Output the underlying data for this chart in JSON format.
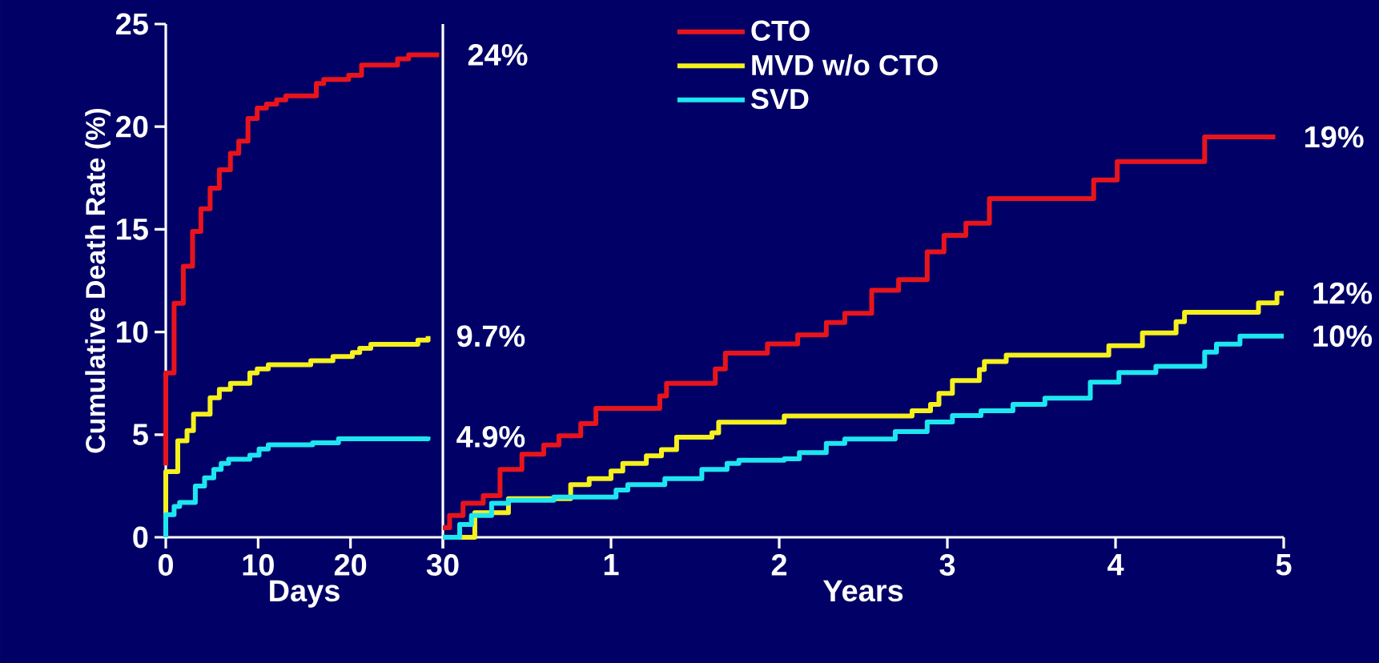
{
  "chart_data": [
    {
      "type": "step",
      "ylabel": "Cumulative Death Rate (%)",
      "xlabel": "Days",
      "xlim": [
        0,
        30
      ],
      "xticks": [
        0,
        10,
        20,
        30
      ],
      "ylim": [
        0,
        25
      ],
      "yticks": [
        0,
        5,
        10,
        15,
        20,
        25
      ],
      "grid": false,
      "series": [
        {
          "color": "#e8141c",
          "x": [
            0,
            0,
            0.9,
            1.9,
            2.9,
            3.8,
            4.8,
            5.8,
            7.0,
            7.9,
            8.9,
            9.9,
            10.9,
            12.0,
            13.0,
            16.3,
            17.1,
            19.8,
            21.2,
            25.1,
            26.3,
            29.6
          ],
          "values": [
            3.5,
            8.0,
            11.4,
            13.2,
            14.9,
            16.0,
            17.0,
            17.9,
            18.7,
            19.3,
            20.4,
            20.9,
            21.1,
            21.3,
            21.5,
            22.1,
            22.3,
            22.5,
            23.0,
            23.3,
            23.5,
            23.5
          ]
        },
        {
          "color": "#f5f01e",
          "x": [
            0,
            0,
            1.3,
            2.3,
            3.0,
            4.8,
            5.8,
            7.0,
            9.1,
            9.9,
            11.1,
            15.7,
            18.1,
            20.2,
            21.0,
            22.2,
            27.3,
            28.4
          ],
          "values": [
            0,
            3.2,
            4.7,
            5.2,
            6.0,
            6.8,
            7.2,
            7.5,
            8.0,
            8.2,
            8.4,
            8.6,
            8.8,
            9.0,
            9.2,
            9.4,
            9.6,
            9.8
          ]
        },
        {
          "color": "#1ee6f0",
          "x": [
            0,
            0,
            0.9,
            1.5,
            3.2,
            4.2,
            5.2,
            6.0,
            6.8,
            9.1,
            10.1,
            11.1,
            15.9,
            18.7,
            28.4
          ],
          "values": [
            0,
            1.1,
            1.5,
            1.7,
            2.5,
            2.9,
            3.3,
            3.6,
            3.8,
            4.0,
            4.3,
            4.5,
            4.6,
            4.8,
            4.9
          ]
        }
      ],
      "annotations": [
        {
          "text": "24%",
          "x": 29.6,
          "y": 23.5
        },
        {
          "text": "9.7%",
          "x": 28.4,
          "y": 9.8
        },
        {
          "text": "4.9%",
          "x": 28.4,
          "y": 4.9
        }
      ]
    },
    {
      "type": "step",
      "xlabel": "Years",
      "xlim": [
        0,
        5
      ],
      "xticks": [
        {
          "value": 0,
          "label": null
        },
        1,
        2,
        3,
        4,
        5
      ],
      "ylim": [
        0,
        25
      ],
      "tick_labels": "x",
      "grid": false,
      "legend": "top left",
      "series": [
        {
          "name": "CTO",
          "color": "#e8141c",
          "x": [
            0,
            0.04,
            0.12,
            0.24,
            0.34,
            0.47,
            0.6,
            0.69,
            0.82,
            0.91,
            1.29,
            1.33,
            1.62,
            1.68,
            1.93,
            2.11,
            2.28,
            2.39,
            2.55,
            2.71,
            2.88,
            2.98,
            3.11,
            3.25,
            3.87,
            4.01,
            4.53,
            4.95
          ],
          "values": [
            0.47,
            1.06,
            1.66,
            2.03,
            3.3,
            4.05,
            4.49,
            4.94,
            5.54,
            6.28,
            6.88,
            7.5,
            8.2,
            8.97,
            9.42,
            9.86,
            10.46,
            10.91,
            12.03,
            12.55,
            13.9,
            14.7,
            15.3,
            16.5,
            17.4,
            18.3,
            19.5,
            19.5
          ]
        },
        {
          "name": "MVD w/o CTO",
          "color": "#f5f01e",
          "x": [
            0,
            0.1,
            0.19,
            0.39,
            0.76,
            0.87,
            1.0,
            1.07,
            1.21,
            1.3,
            1.39,
            1.6,
            1.64,
            2.03,
            2.79,
            2.9,
            2.95,
            3.03,
            3.19,
            3.22,
            3.35,
            3.96,
            4.16,
            4.36,
            4.41,
            4.85,
            4.96,
            5.0
          ],
          "values": [
            0,
            null,
            1.2,
            1.88,
            2.56,
            2.86,
            3.23,
            3.6,
            3.97,
            4.27,
            4.87,
            5.09,
            5.61,
            5.91,
            6.16,
            6.47,
            7.01,
            7.63,
            8.17,
            8.56,
            8.87,
            9.33,
            9.95,
            10.5,
            10.96,
            11.42,
            11.89,
            11.89
          ]
        },
        {
          "name": "SVD",
          "color": "#1ee6f0",
          "x": [
            0,
            0.1,
            0.17,
            0.29,
            0.39,
            0.66,
            1.03,
            1.1,
            1.32,
            1.54,
            1.69,
            1.76,
            2.03,
            2.12,
            2.28,
            2.39,
            2.69,
            2.88,
            3.03,
            3.2,
            3.39,
            3.58,
            3.85,
            4.02,
            4.24,
            4.53,
            4.6,
            4.74,
            5.0
          ],
          "values": [
            0,
            0.62,
            1.06,
            1.66,
            1.8,
            1.96,
            2.3,
            2.56,
            2.86,
            3.3,
            3.6,
            3.75,
            3.82,
            4.12,
            4.57,
            4.79,
            5.15,
            5.62,
            5.93,
            6.16,
            6.47,
            6.78,
            7.56,
            8.02,
            8.33,
            9.02,
            9.41,
            9.8,
            9.8
          ]
        }
      ],
      "annotations": [
        {
          "text": "19%",
          "x": 4.95,
          "y": 19.5
        },
        {
          "text": "12%",
          "x": 5,
          "y": 11.89
        },
        {
          "text": "10%",
          "x": 5,
          "y": 9.8
        }
      ]
    }
  ]
}
